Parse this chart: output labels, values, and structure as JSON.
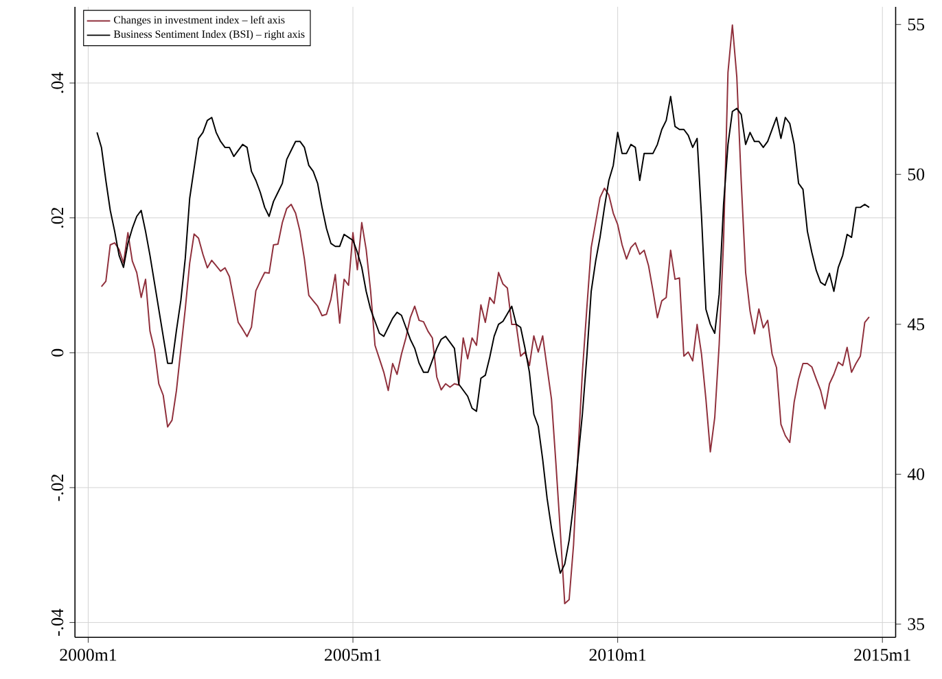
{
  "chart_data": {
    "type": "line",
    "series": [
      {
        "name": "Changes in investment index – left axis",
        "color": "#8f2f3b",
        "axis": "y",
        "x": [
          "2000-04",
          "2000-05",
          "2000-06",
          "2000-07",
          "2000-08",
          "2000-09",
          "2000-10",
          "2000-11",
          "2000-12",
          "2001-01",
          "2001-02",
          "2001-03",
          "2001-04",
          "2001-05",
          "2001-06",
          "2001-07",
          "2001-08",
          "2001-09",
          "2001-10",
          "2001-11",
          "2001-12",
          "2002-01",
          "2002-02",
          "2002-03",
          "2002-04",
          "2002-05",
          "2002-06",
          "2002-07",
          "2002-08",
          "2002-09",
          "2002-10",
          "2002-11",
          "2002-12",
          "2003-01",
          "2003-02",
          "2003-03",
          "2003-04",
          "2003-05",
          "2003-06",
          "2003-07",
          "2003-08",
          "2003-09",
          "2003-10",
          "2003-11",
          "2003-12",
          "2004-01",
          "2004-02",
          "2004-03",
          "2004-04",
          "2004-05",
          "2004-06",
          "2004-07",
          "2004-08",
          "2004-09",
          "2004-10",
          "2004-11",
          "2004-12",
          "2005-01",
          "2005-02",
          "2005-03",
          "2005-04",
          "2005-05",
          "2005-06",
          "2005-07",
          "2005-08",
          "2005-09",
          "2005-10",
          "2005-11",
          "2005-12",
          "2006-01",
          "2006-02",
          "2006-03",
          "2006-04",
          "2006-05",
          "2006-06",
          "2006-07",
          "2006-08",
          "2006-09",
          "2006-10",
          "2006-11",
          "2006-12",
          "2007-01",
          "2007-02",
          "2007-03",
          "2007-04",
          "2007-05",
          "2007-06",
          "2007-07",
          "2007-08",
          "2007-09",
          "2007-10",
          "2007-11",
          "2007-12",
          "2008-01",
          "2008-02",
          "2008-03",
          "2008-04",
          "2008-05",
          "2008-06",
          "2008-07",
          "2008-08",
          "2008-09",
          "2008-10",
          "2008-11",
          "2008-12",
          "2009-01",
          "2009-02",
          "2009-03",
          "2009-04",
          "2009-05",
          "2009-06",
          "2009-07",
          "2009-08",
          "2009-09",
          "2009-10",
          "2009-11",
          "2009-12",
          "2010-01",
          "2010-02",
          "2010-03",
          "2010-04",
          "2010-05",
          "2010-06",
          "2010-07",
          "2010-08",
          "2010-09",
          "2010-10",
          "2010-11",
          "2010-12",
          "2011-01",
          "2011-02",
          "2011-03",
          "2011-04",
          "2011-05",
          "2011-06",
          "2011-07",
          "2011-08",
          "2011-09",
          "2011-10",
          "2011-11",
          "2011-12",
          "2012-01",
          "2012-02",
          "2012-03",
          "2012-04",
          "2012-05",
          "2012-06",
          "2012-07",
          "2012-08",
          "2012-09",
          "2012-10",
          "2012-11",
          "2012-12",
          "2013-01",
          "2013-02",
          "2013-03",
          "2013-04",
          "2013-05",
          "2013-06",
          "2013-07",
          "2013-08",
          "2013-09",
          "2013-10",
          "2013-11",
          "2013-12",
          "2014-01",
          "2014-02",
          "2014-03",
          "2014-04",
          "2014-05",
          "2014-06",
          "2014-07",
          "2014-08",
          "2014-09",
          "2014-10"
        ],
        "values": [
          0.0098,
          0.0106,
          0.016,
          0.0163,
          0.0153,
          0.0133,
          0.0178,
          0.0136,
          0.0119,
          0.0082,
          0.0109,
          0.0032,
          0.0005,
          -0.0046,
          -0.0063,
          -0.011,
          -0.01,
          -0.0056,
          0.0005,
          0.0065,
          0.0133,
          0.0176,
          0.017,
          0.0146,
          0.0126,
          0.0137,
          0.0129,
          0.0121,
          0.0126,
          0.0113,
          0.0079,
          0.0045,
          0.0035,
          0.0024,
          0.0038,
          0.0092,
          0.0106,
          0.0119,
          0.0118,
          0.016,
          0.0161,
          0.0193,
          0.0214,
          0.022,
          0.0207,
          0.018,
          0.0139,
          0.0085,
          0.0077,
          0.0069,
          0.0055,
          0.0057,
          0.0079,
          0.0116,
          0.0044,
          0.0109,
          0.01,
          0.0178,
          0.0123,
          0.0193,
          0.0153,
          0.0092,
          0.0011,
          -0.0009,
          -0.0029,
          -0.0056,
          -0.0016,
          -0.0032,
          -0.0002,
          0.0022,
          0.0052,
          0.0069,
          0.0048,
          0.0046,
          0.0032,
          0.0022,
          -0.0036,
          -0.0055,
          -0.0046,
          -0.0051,
          -0.0046,
          -0.0048,
          0.0022,
          -0.0009,
          0.0022,
          0.0011,
          0.0071,
          0.0045,
          0.0082,
          0.0073,
          0.0119,
          0.0102,
          0.0096,
          0.0042,
          0.0042,
          -0.0005,
          0.0001,
          -0.0019,
          0.0025,
          0.0001,
          0.0025,
          -0.0022,
          -0.0069,
          -0.0164,
          -0.0265,
          -0.0372,
          -0.0366,
          -0.0285,
          -0.015,
          -0.0029,
          0.0065,
          0.0156,
          0.0193,
          0.023,
          0.0244,
          0.0234,
          0.0207,
          0.019,
          0.016,
          0.0139,
          0.0156,
          0.0163,
          0.0146,
          0.0152,
          0.0129,
          0.0092,
          0.0052,
          0.0077,
          0.0082,
          0.0152,
          0.0109,
          0.0111,
          -0.0005,
          0.0001,
          -0.0012,
          0.0042,
          -0.0002,
          -0.0069,
          -0.0147,
          -0.0096,
          0.0012,
          0.0166,
          0.0416,
          0.0486,
          0.0409,
          0.0254,
          0.0119,
          0.0062,
          0.0028,
          0.0065,
          0.0037,
          0.0048,
          -0.0002,
          -0.0022,
          -0.0106,
          -0.0123,
          -0.0133,
          -0.0073,
          -0.0039,
          -0.0016,
          -0.0016,
          -0.0021,
          -0.0039,
          -0.0056,
          -0.0083,
          -0.0046,
          -0.0032,
          -0.0014,
          -0.0019,
          0.0008,
          -0.0029,
          -0.0016,
          -0.0005,
          0.0045,
          0.0053
        ]
      },
      {
        "name": "Business Sentiment Index (BSI) – right axis",
        "color": "#000000",
        "axis": "y2",
        "x": [
          "2000-03",
          "2000-04",
          "2000-05",
          "2000-06",
          "2000-07",
          "2000-08",
          "2000-09",
          "2000-10",
          "2000-11",
          "2000-12",
          "2001-01",
          "2001-02",
          "2001-03",
          "2001-04",
          "2001-05",
          "2001-06",
          "2001-07",
          "2001-08",
          "2001-09",
          "2001-10",
          "2001-11",
          "2001-12",
          "2002-01",
          "2002-02",
          "2002-03",
          "2002-04",
          "2002-05",
          "2002-06",
          "2002-07",
          "2002-08",
          "2002-09",
          "2002-10",
          "2002-11",
          "2002-12",
          "2003-01",
          "2003-02",
          "2003-03",
          "2003-04",
          "2003-05",
          "2003-06",
          "2003-07",
          "2003-08",
          "2003-09",
          "2003-10",
          "2003-11",
          "2003-12",
          "2004-01",
          "2004-02",
          "2004-03",
          "2004-04",
          "2004-05",
          "2004-06",
          "2004-07",
          "2004-08",
          "2004-09",
          "2004-10",
          "2004-11",
          "2004-12",
          "2005-01",
          "2005-02",
          "2005-03",
          "2005-04",
          "2005-05",
          "2005-06",
          "2005-07",
          "2005-08",
          "2005-09",
          "2005-10",
          "2005-11",
          "2005-12",
          "2006-01",
          "2006-02",
          "2006-03",
          "2006-04",
          "2006-05",
          "2006-06",
          "2006-07",
          "2006-08",
          "2006-09",
          "2006-10",
          "2006-11",
          "2006-12",
          "2007-01",
          "2007-02",
          "2007-03",
          "2007-04",
          "2007-05",
          "2007-06",
          "2007-07",
          "2007-08",
          "2007-09",
          "2007-10",
          "2007-11",
          "2008-01",
          "2008-02",
          "2008-03",
          "2008-04",
          "2008-05",
          "2008-06",
          "2008-07",
          "2008-08",
          "2008-09",
          "2008-10",
          "2008-11",
          "2008-12",
          "2009-01",
          "2009-02",
          "2009-03",
          "2009-04",
          "2009-05",
          "2009-06",
          "2009-07",
          "2009-08",
          "2009-09",
          "2009-10",
          "2009-11",
          "2009-12",
          "2010-01",
          "2010-02",
          "2010-03",
          "2010-04",
          "2010-05",
          "2010-06",
          "2010-07",
          "2010-08",
          "2010-09",
          "2010-10",
          "2010-11",
          "2010-12",
          "2011-01",
          "2011-02",
          "2011-03",
          "2011-04",
          "2011-05",
          "2011-06",
          "2011-07",
          "2011-08",
          "2011-09",
          "2011-10",
          "2011-11",
          "2011-12",
          "2012-01",
          "2012-02",
          "2012-03",
          "2012-04",
          "2012-05",
          "2012-06",
          "2012-07",
          "2012-08",
          "2012-09",
          "2012-10",
          "2012-11",
          "2012-12",
          "2013-01",
          "2013-02",
          "2013-03",
          "2013-04",
          "2013-05",
          "2013-06",
          "2013-07",
          "2013-08",
          "2013-09",
          "2013-10",
          "2013-11",
          "2013-12",
          "2014-01",
          "2014-02",
          "2014-03",
          "2014-04",
          "2014-05",
          "2014-06",
          "2014-07",
          "2014-08",
          "2014-09",
          "2014-10"
        ],
        "values": [
          51.4,
          50.9,
          49.8,
          48.8,
          48.1,
          47.3,
          46.9,
          47.7,
          48.2,
          48.6,
          48.8,
          48.1,
          47.3,
          46.4,
          45.5,
          44.6,
          43.7,
          43.7,
          44.8,
          45.8,
          47.2,
          49.2,
          50.2,
          51.2,
          51.4,
          51.8,
          51.9,
          51.4,
          51.1,
          50.9,
          50.9,
          50.6,
          50.8,
          51.0,
          50.9,
          50.1,
          49.8,
          49.4,
          48.9,
          48.6,
          49.1,
          49.4,
          49.7,
          50.5,
          50.8,
          51.1,
          51.1,
          50.9,
          50.3,
          50.1,
          49.7,
          48.9,
          48.2,
          47.7,
          47.6,
          47.6,
          48.0,
          47.9,
          47.8,
          47.4,
          46.9,
          46.1,
          45.5,
          45.1,
          44.7,
          44.6,
          44.9,
          45.2,
          45.4,
          45.3,
          44.9,
          44.5,
          44.2,
          43.7,
          43.4,
          43.4,
          43.8,
          44.2,
          44.5,
          44.6,
          44.4,
          44.2,
          43.0,
          42.8,
          42.6,
          42.2,
          42.1,
          43.2,
          43.3,
          43.9,
          44.6,
          45.0,
          45.1,
          45.6,
          45.0,
          44.9,
          44.2,
          43.4,
          42.0,
          41.6,
          40.5,
          39.2,
          38.2,
          37.4,
          36.7,
          37.0,
          37.8,
          39.0,
          40.5,
          42.0,
          43.9,
          46.1,
          47.1,
          47.9,
          48.9,
          49.8,
          50.3,
          51.4,
          50.7,
          50.7,
          51.0,
          50.9,
          49.8,
          50.7,
          50.7,
          50.7,
          51.0,
          51.5,
          51.8,
          52.6,
          51.6,
          51.5,
          51.5,
          51.3,
          50.9,
          51.2,
          48.6,
          45.5,
          45.0,
          44.7,
          46.0,
          49.0,
          51.0,
          52.1,
          52.2,
          52.0,
          51.0,
          51.4,
          51.1,
          51.1,
          50.9,
          51.1,
          51.5,
          51.9,
          51.2,
          51.9,
          51.7,
          51.0,
          49.7,
          49.5,
          48.1,
          47.4,
          46.8,
          46.4,
          46.3,
          46.7,
          46.1,
          46.9,
          47.3,
          48.0,
          47.9,
          48.9,
          48.9,
          49.0,
          48.9
        ]
      }
    ],
    "xlim": [
      "1999-10",
      "2015-04"
    ],
    "xticks": [
      {
        "value": "2000-01",
        "label": "2000m1"
      },
      {
        "value": "2005-01",
        "label": "2005m1"
      },
      {
        "value": "2010-01",
        "label": "2010m1"
      },
      {
        "value": "2015-01",
        "label": "2015m1"
      }
    ],
    "ylim": [
      -0.0422,
      0.0513
    ],
    "yticks": [
      {
        "value": -0.04,
        "label": "-.04"
      },
      {
        "value": -0.02,
        "label": "-.02"
      },
      {
        "value": 0,
        "label": "0"
      },
      {
        "value": 0.02,
        "label": ".02"
      },
      {
        "value": 0.04,
        "label": ".04"
      }
    ],
    "y2lim": [
      34.56,
      55.59
    ],
    "y2ticks": [
      35,
      40,
      45,
      50,
      55
    ],
    "grid": true,
    "legend": "top left",
    "marker": "none",
    "line_style": "solid"
  }
}
